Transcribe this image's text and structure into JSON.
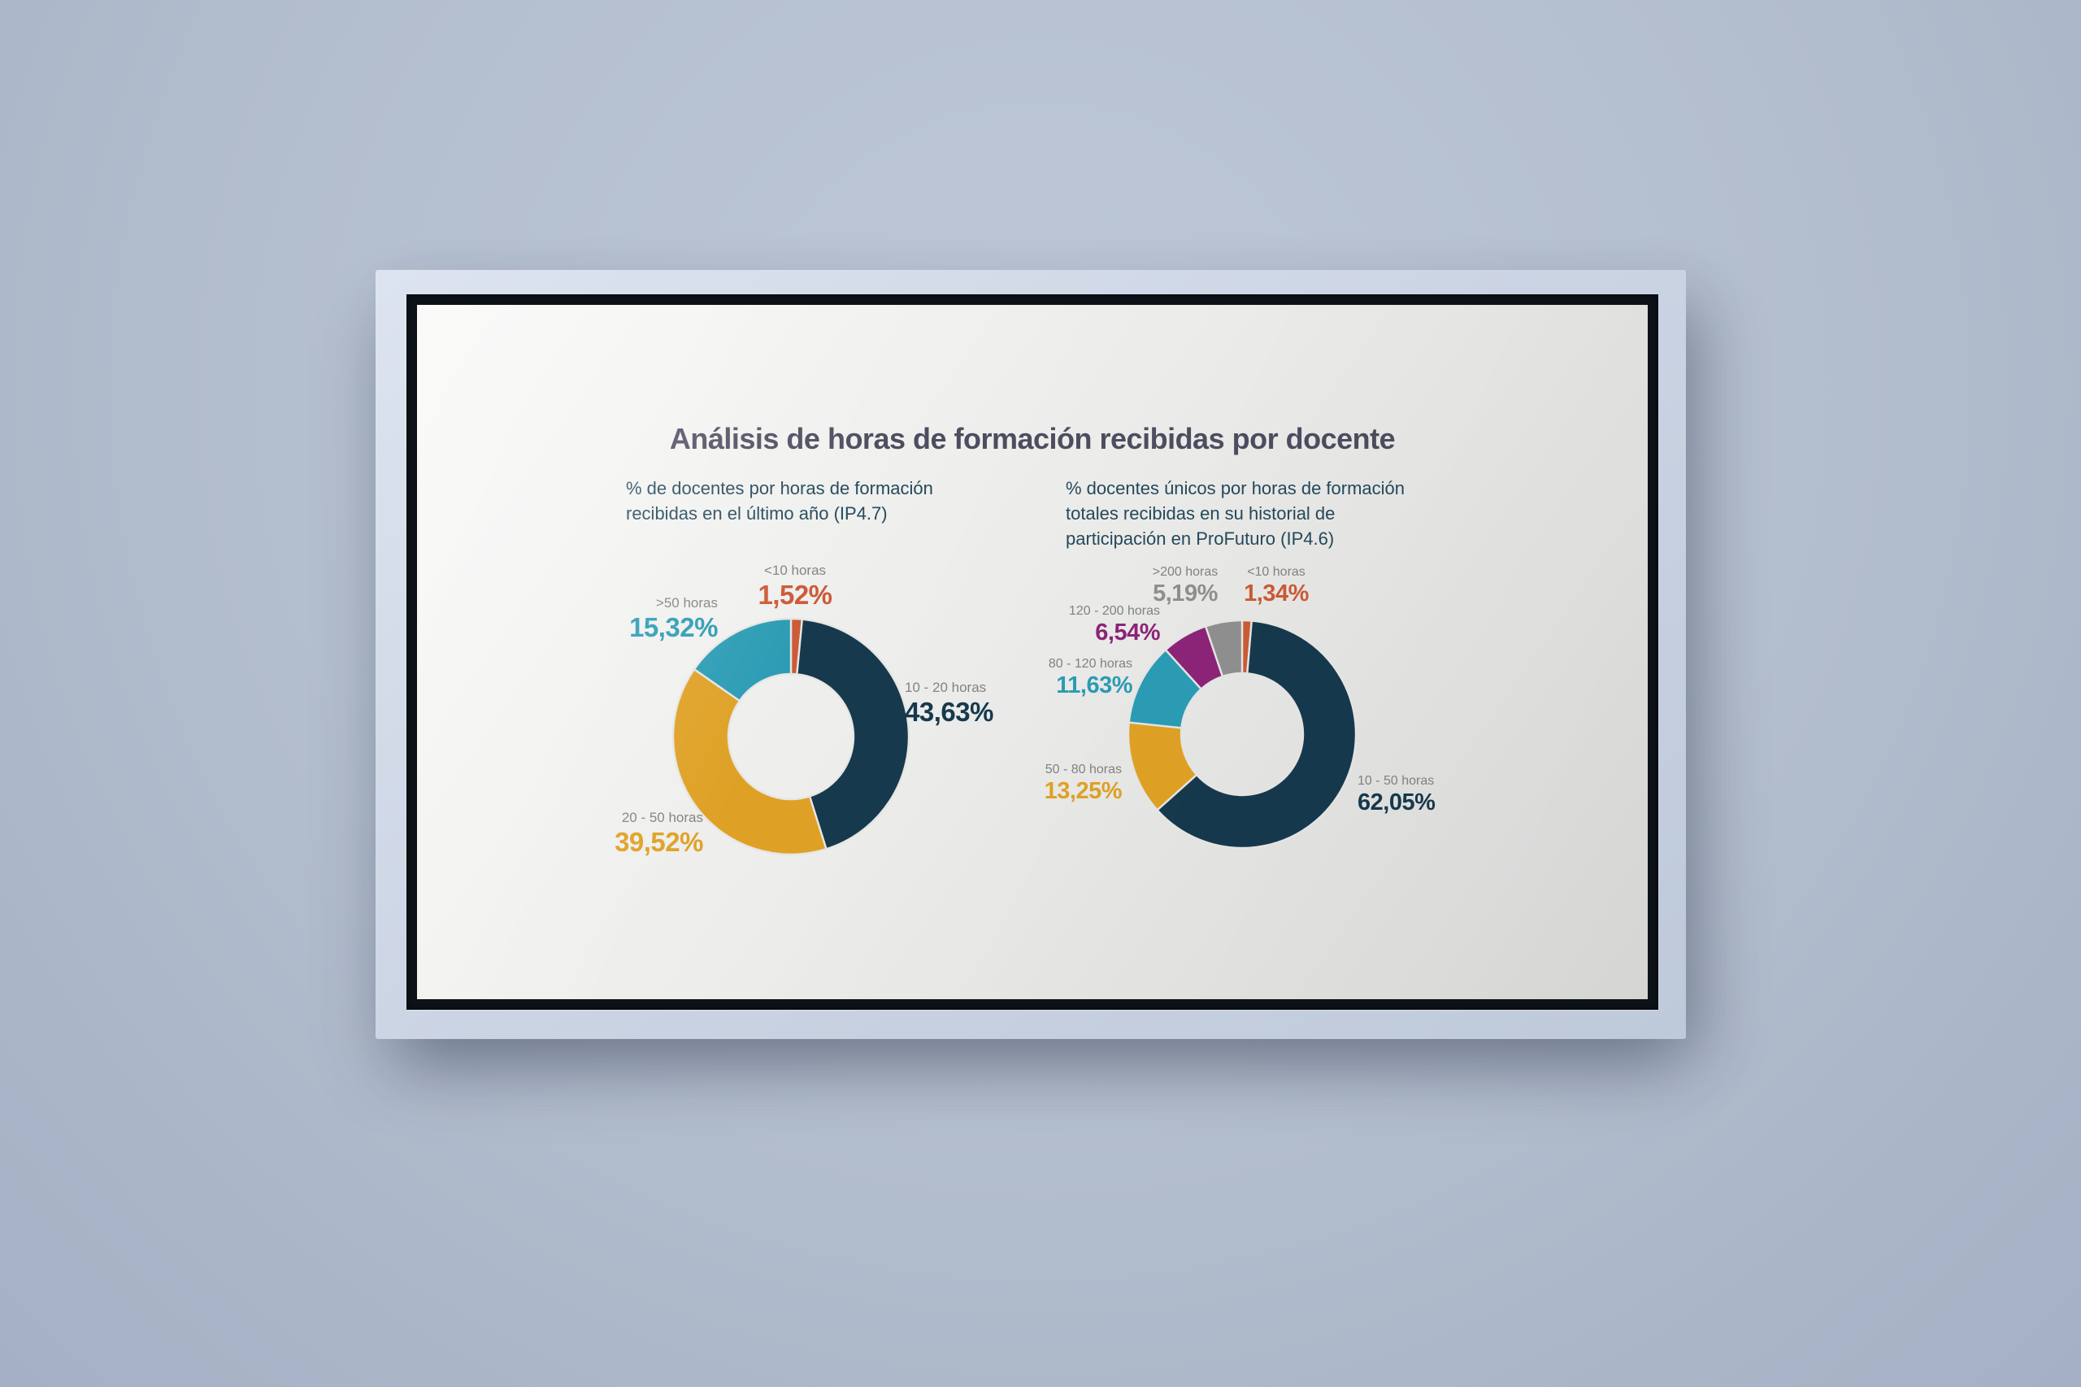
{
  "slide": {
    "title": "Análisis de horas de formación recibidas por docente",
    "charts": [
      {
        "subtitle_lines": [
          "% de docentes por horas de formación",
          "recibidas en el último año (IP4.7)"
        ]
      },
      {
        "subtitle_lines": [
          "% docentes únicos por horas de formación",
          "totales recibidas en su historial de",
          "participación en ProFuturo (IP4.6)"
        ]
      }
    ]
  },
  "colors": {
    "title_text": "#4d4d60",
    "subtitle_text": "#24495c",
    "callout_label_text": "#828282",
    "slide_background": "#ececea",
    "bezel": "#0c1218",
    "wall": "#b3bece"
  },
  "chart_data": [
    {
      "type": "pie",
      "subtype": "donut",
      "title": "% de docentes por horas de formación recibidas en el último año (IP4.7)",
      "categories": [
        "<10 horas",
        "10 - 20 horas",
        "20 - 50 horas",
        ">50 horas"
      ],
      "values": [
        1.52,
        43.63,
        39.52,
        15.32
      ],
      "value_labels": [
        "1,52%",
        "43,63%",
        "39,52%",
        "15,32%"
      ],
      "colors": [
        "#cc5a36",
        "#16394d",
        "#dfa125",
        "#2b9cb4"
      ],
      "start_angle_deg": 0,
      "direction": "clockwise",
      "inner_radius_ratio": 0.53,
      "legend": "none",
      "labels": "outside callouts"
    },
    {
      "type": "pie",
      "subtype": "donut",
      "title": "% docentes únicos por horas de formación totales recibidas en su historial de participación en ProFuturo (IP4.6)",
      "categories": [
        "<10 horas",
        "10 - 50 horas",
        "50 - 80 horas",
        "80 - 120 horas",
        "120 - 200 horas",
        ">200 horas"
      ],
      "values": [
        1.34,
        62.05,
        13.25,
        11.63,
        6.54,
        5.19
      ],
      "value_labels": [
        "1,34%",
        "62,05%",
        "13,25%",
        "11,63%",
        "6,54%",
        "5,19%"
      ],
      "colors": [
        "#cc5a36",
        "#16394d",
        "#dfa125",
        "#2b9cb4",
        "#8c2478",
        "#8f8f8f"
      ],
      "start_angle_deg": 0,
      "direction": "clockwise",
      "inner_radius_ratio": 0.535,
      "legend": "none",
      "labels": "outside callouts"
    }
  ]
}
